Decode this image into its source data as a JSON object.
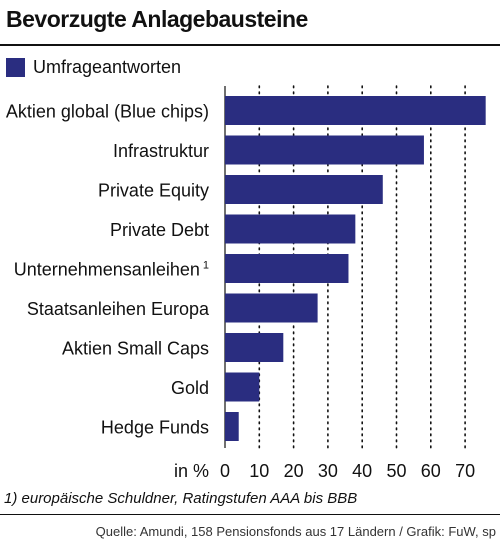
{
  "header": {
    "title": "Bevorzugte Anlagebausteine"
  },
  "legend": {
    "label": "Umfrageantworten"
  },
  "colors": {
    "bar": "#2a2d80",
    "text": "#111111",
    "grid": "#111111"
  },
  "chart_data": {
    "type": "bar",
    "orientation": "horizontal",
    "categories": [
      "Aktien global (Blue chips)",
      "Infrastruktur",
      "Private Equity",
      "Private Debt",
      "Unternehmensanleihen",
      "Staatsanleihen Europa",
      "Aktien Small Caps",
      "Gold",
      "Hedge Funds"
    ],
    "category_superscripts": [
      "",
      "",
      "",
      "",
      "1",
      "",
      "",
      "",
      ""
    ],
    "series": [
      {
        "name": "Umfrageantworten",
        "values": [
          76,
          58,
          46,
          38,
          36,
          27,
          17,
          10,
          4
        ]
      }
    ],
    "xlabel": "in %",
    "xticks": [
      0,
      10,
      20,
      30,
      40,
      50,
      60,
      70
    ],
    "xlim": [
      0,
      78
    ],
    "grid": "vertical dotted",
    "legend": "top-left"
  },
  "footnote": "1) europäische Schuldner, Ratingstufen AAA bis BBB",
  "source": "Quelle: Amundi, 158 Pensionsfonds aus 17 Ländern / Grafik: FuW, sp"
}
